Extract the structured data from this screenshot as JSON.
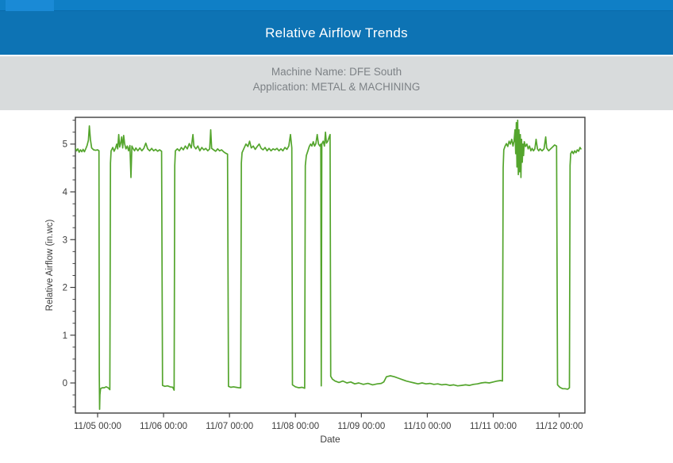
{
  "header": {
    "title": "Relative Airflow Trends",
    "bg_color": "#0d73b4",
    "strip_color": "#0f7fc6",
    "tab_color": "#1a8ad6"
  },
  "subheader": {
    "machine_line": "Machine Name: DFE South",
    "application_line": "Application: METAL & MACHINING",
    "bg_color": "#d8dbdc",
    "text_color": "#7d8286"
  },
  "chart_data": {
    "type": "line",
    "title": "",
    "xlabel": "Date",
    "ylabel": "Relative Airflow (in.wc)",
    "line_color": "#54a52d",
    "axis_color": "#3f3f3f",
    "tick_text_color": "#3d3d3d",
    "grid": "off",
    "legend": "none",
    "x_unit": "days since 11/05 00:00",
    "x_ticks": [
      {
        "day": 0,
        "label": "11/05 00:00"
      },
      {
        "day": 1,
        "label": "11/06 00:00"
      },
      {
        "day": 2,
        "label": "11/07 00:00"
      },
      {
        "day": 3,
        "label": "11/08 00:00"
      },
      {
        "day": 4,
        "label": "11/09 00:00"
      },
      {
        "day": 5,
        "label": "11/10 00:00"
      },
      {
        "day": 6,
        "label": "11/11 00:00"
      },
      {
        "day": 7,
        "label": "11/12 00:00"
      }
    ],
    "y_ticks": [
      0,
      1,
      2,
      3,
      4,
      5
    ],
    "y_minor_step": 0.25,
    "y_minor_range": [
      -0.5,
      5.5
    ],
    "xlim_days": [
      -0.337,
      7.39
    ],
    "ylim": [
      -0.63,
      5.56
    ],
    "series": [
      {
        "name": "Relative Airflow",
        "points": [
          [
            -0.34,
            4.92
          ],
          [
            -0.32,
            4.86
          ],
          [
            -0.3,
            4.9
          ],
          [
            -0.28,
            4.83
          ],
          [
            -0.26,
            4.88
          ],
          [
            -0.24,
            4.84
          ],
          [
            -0.22,
            4.89
          ],
          [
            -0.2,
            4.84
          ],
          [
            -0.18,
            4.9
          ],
          [
            -0.16,
            4.97
          ],
          [
            -0.14,
            5.08
          ],
          [
            -0.125,
            5.38
          ],
          [
            -0.11,
            5.1
          ],
          [
            -0.09,
            4.92
          ],
          [
            -0.06,
            4.88
          ],
          [
            -0.03,
            4.87
          ],
          [
            0.0,
            4.88
          ],
          [
            0.02,
            4.86
          ],
          [
            0.025,
            0.2
          ],
          [
            0.03,
            -0.55
          ],
          [
            0.035,
            -0.25
          ],
          [
            0.045,
            -0.12
          ],
          [
            0.07,
            -0.1
          ],
          [
            0.1,
            -0.1
          ],
          [
            0.13,
            -0.08
          ],
          [
            0.16,
            -0.1
          ],
          [
            0.185,
            -0.14
          ],
          [
            0.195,
            4.6
          ],
          [
            0.205,
            4.86
          ],
          [
            0.23,
            4.93
          ],
          [
            0.25,
            4.85
          ],
          [
            0.27,
            4.91
          ],
          [
            0.29,
            5.0
          ],
          [
            0.305,
            4.9
          ],
          [
            0.32,
            5.2
          ],
          [
            0.335,
            4.94
          ],
          [
            0.35,
            5.02
          ],
          [
            0.365,
            5.15
          ],
          [
            0.38,
            4.92
          ],
          [
            0.395,
            5.18
          ],
          [
            0.41,
            5.0
          ],
          [
            0.43,
            4.9
          ],
          [
            0.45,
            4.96
          ],
          [
            0.47,
            4.86
          ],
          [
            0.49,
            4.97
          ],
          [
            0.505,
            4.3
          ],
          [
            0.52,
            4.96
          ],
          [
            0.54,
            4.9
          ],
          [
            0.56,
            4.86
          ],
          [
            0.58,
            4.92
          ],
          [
            0.61,
            4.86
          ],
          [
            0.64,
            4.92
          ],
          [
            0.67,
            4.86
          ],
          [
            0.7,
            4.91
          ],
          [
            0.73,
            5.02
          ],
          [
            0.76,
            4.9
          ],
          [
            0.79,
            4.86
          ],
          [
            0.82,
            4.91
          ],
          [
            0.85,
            4.86
          ],
          [
            0.88,
            4.89
          ],
          [
            0.91,
            4.85
          ],
          [
            0.94,
            4.88
          ],
          [
            0.97,
            4.85
          ],
          [
            0.985,
            -0.05
          ],
          [
            1.02,
            -0.07
          ],
          [
            1.06,
            -0.06
          ],
          [
            1.1,
            -0.08
          ],
          [
            1.14,
            -0.09
          ],
          [
            1.16,
            -0.15
          ],
          [
            1.17,
            4.55
          ],
          [
            1.18,
            4.86
          ],
          [
            1.21,
            4.9
          ],
          [
            1.24,
            4.86
          ],
          [
            1.27,
            4.93
          ],
          [
            1.3,
            4.88
          ],
          [
            1.33,
            4.96
          ],
          [
            1.36,
            4.9
          ],
          [
            1.39,
            5.01
          ],
          [
            1.42,
            4.92
          ],
          [
            1.445,
            5.2
          ],
          [
            1.46,
            4.96
          ],
          [
            1.49,
            4.9
          ],
          [
            1.52,
            4.96
          ],
          [
            1.55,
            4.86
          ],
          [
            1.58,
            4.93
          ],
          [
            1.61,
            4.88
          ],
          [
            1.64,
            4.91
          ],
          [
            1.67,
            4.86
          ],
          [
            1.7,
            4.9
          ],
          [
            1.715,
            5.3
          ],
          [
            1.73,
            4.91
          ],
          [
            1.76,
            4.88
          ],
          [
            1.79,
            4.85
          ],
          [
            1.82,
            4.9
          ],
          [
            1.85,
            4.86
          ],
          [
            1.88,
            4.88
          ],
          [
            1.91,
            4.84
          ],
          [
            1.94,
            4.81
          ],
          [
            1.97,
            4.79
          ],
          [
            1.985,
            -0.07
          ],
          [
            2.02,
            -0.09
          ],
          [
            2.06,
            -0.08
          ],
          [
            2.1,
            -0.09
          ],
          [
            2.14,
            -0.1
          ],
          [
            2.17,
            -0.1
          ],
          [
            2.18,
            4.6
          ],
          [
            2.19,
            4.82
          ],
          [
            2.22,
            4.91
          ],
          [
            2.25,
            5.0
          ],
          [
            2.28,
            4.95
          ],
          [
            2.305,
            5.06
          ],
          [
            2.33,
            4.92
          ],
          [
            2.36,
            4.96
          ],
          [
            2.39,
            4.89
          ],
          [
            2.42,
            4.95
          ],
          [
            2.45,
            5.0
          ],
          [
            2.48,
            4.91
          ],
          [
            2.51,
            4.88
          ],
          [
            2.54,
            4.93
          ],
          [
            2.57,
            4.86
          ],
          [
            2.6,
            4.91
          ],
          [
            2.63,
            4.86
          ],
          [
            2.66,
            4.9
          ],
          [
            2.69,
            4.88
          ],
          [
            2.72,
            4.91
          ],
          [
            2.75,
            4.86
          ],
          [
            2.78,
            4.9
          ],
          [
            2.81,
            4.86
          ],
          [
            2.84,
            4.93
          ],
          [
            2.87,
            4.89
          ],
          [
            2.9,
            4.96
          ],
          [
            2.925,
            5.2
          ],
          [
            2.945,
            4.92
          ],
          [
            2.955,
            -0.04
          ],
          [
            3.0,
            -0.08
          ],
          [
            3.05,
            -0.1
          ],
          [
            3.1,
            -0.09
          ],
          [
            3.14,
            -0.11
          ],
          [
            3.15,
            4.55
          ],
          [
            3.165,
            4.76
          ],
          [
            3.19,
            4.86
          ],
          [
            3.21,
            4.95
          ],
          [
            3.23,
            5.0
          ],
          [
            3.25,
            4.96
          ],
          [
            3.27,
            5.05
          ],
          [
            3.29,
            4.96
          ],
          [
            3.31,
            5.01
          ],
          [
            3.33,
            5.2
          ],
          [
            3.35,
            5.0
          ],
          [
            3.37,
            4.96
          ],
          [
            3.385,
            5.0
          ],
          [
            3.392,
            -0.06
          ],
          [
            3.4,
            5.0
          ],
          [
            3.42,
            5.06
          ],
          [
            3.44,
            4.96
          ],
          [
            3.455,
            5.25
          ],
          [
            3.47,
            5.02
          ],
          [
            3.49,
            5.06
          ],
          [
            3.51,
            5.14
          ],
          [
            3.525,
            5.2
          ],
          [
            3.535,
            0.14
          ],
          [
            3.56,
            0.08
          ],
          [
            3.6,
            0.04
          ],
          [
            3.66,
            0.01
          ],
          [
            3.72,
            0.04
          ],
          [
            3.78,
            0.0
          ],
          [
            3.84,
            0.02
          ],
          [
            3.9,
            -0.02
          ],
          [
            3.96,
            0.0
          ],
          [
            4.03,
            -0.03
          ],
          [
            4.1,
            -0.01
          ],
          [
            4.17,
            -0.04
          ],
          [
            4.24,
            -0.02
          ],
          [
            4.3,
            -0.01
          ],
          [
            4.34,
            0.02
          ],
          [
            4.38,
            0.13
          ],
          [
            4.44,
            0.15
          ],
          [
            4.5,
            0.13
          ],
          [
            4.56,
            0.1
          ],
          [
            4.62,
            0.07
          ],
          [
            4.68,
            0.04
          ],
          [
            4.74,
            0.02
          ],
          [
            4.8,
            0.0
          ],
          [
            4.86,
            -0.02
          ],
          [
            4.92,
            0.0
          ],
          [
            4.98,
            -0.02
          ],
          [
            5.04,
            -0.01
          ],
          [
            5.1,
            -0.03
          ],
          [
            5.16,
            -0.02
          ],
          [
            5.22,
            -0.04
          ],
          [
            5.28,
            -0.03
          ],
          [
            5.34,
            -0.05
          ],
          [
            5.4,
            -0.04
          ],
          [
            5.46,
            -0.06
          ],
          [
            5.52,
            -0.05
          ],
          [
            5.58,
            -0.04
          ],
          [
            5.64,
            -0.05
          ],
          [
            5.7,
            -0.03
          ],
          [
            5.76,
            -0.02
          ],
          [
            5.82,
            0.0
          ],
          [
            5.88,
            0.01
          ],
          [
            5.94,
            0.0
          ],
          [
            6.0,
            0.02
          ],
          [
            6.06,
            0.04
          ],
          [
            6.11,
            0.05
          ],
          [
            6.14,
            0.04
          ],
          [
            6.15,
            4.5
          ],
          [
            6.16,
            4.88
          ],
          [
            6.18,
            4.96
          ],
          [
            6.2,
            5.01
          ],
          [
            6.22,
            4.95
          ],
          [
            6.24,
            5.06
          ],
          [
            6.26,
            5.0
          ],
          [
            6.28,
            5.1
          ],
          [
            6.3,
            4.96
          ],
          [
            6.315,
            5.06
          ],
          [
            6.33,
            5.3
          ],
          [
            6.34,
            4.8
          ],
          [
            6.35,
            5.45
          ],
          [
            6.36,
            4.52
          ],
          [
            6.37,
            5.5
          ],
          [
            6.38,
            4.36
          ],
          [
            6.39,
            5.3
          ],
          [
            6.4,
            4.42
          ],
          [
            6.41,
            5.2
          ],
          [
            6.42,
            4.3
          ],
          [
            6.43,
            5.1
          ],
          [
            6.44,
            4.62
          ],
          [
            6.45,
            5.0
          ],
          [
            6.46,
            4.76
          ],
          [
            6.47,
            5.05
          ],
          [
            6.49,
            4.95
          ],
          [
            6.51,
            5.0
          ],
          [
            6.53,
            4.9
          ],
          [
            6.55,
            4.96
          ],
          [
            6.57,
            4.86
          ],
          [
            6.59,
            4.91
          ],
          [
            6.61,
            4.86
          ],
          [
            6.63,
            4.9
          ],
          [
            6.65,
            5.1
          ],
          [
            6.67,
            4.9
          ],
          [
            6.69,
            4.86
          ],
          [
            6.71,
            4.9
          ],
          [
            6.74,
            4.86
          ],
          [
            6.77,
            4.9
          ],
          [
            6.795,
            5.15
          ],
          [
            6.81,
            4.92
          ],
          [
            6.84,
            4.86
          ],
          [
            6.87,
            4.9
          ],
          [
            6.9,
            4.94
          ],
          [
            6.93,
            4.98
          ],
          [
            6.96,
            4.96
          ],
          [
            6.975,
            -0.04
          ],
          [
            7.01,
            -0.09
          ],
          [
            7.05,
            -0.12
          ],
          [
            7.09,
            -0.12
          ],
          [
            7.13,
            -0.13
          ],
          [
            7.155,
            -0.1
          ],
          [
            7.165,
            4.55
          ],
          [
            7.175,
            4.8
          ],
          [
            7.195,
            4.85
          ],
          [
            7.215,
            4.8
          ],
          [
            7.235,
            4.86
          ],
          [
            7.255,
            4.82
          ],
          [
            7.275,
            4.88
          ],
          [
            7.295,
            4.85
          ],
          [
            7.315,
            4.93
          ],
          [
            7.33,
            4.9
          ]
        ]
      }
    ]
  }
}
